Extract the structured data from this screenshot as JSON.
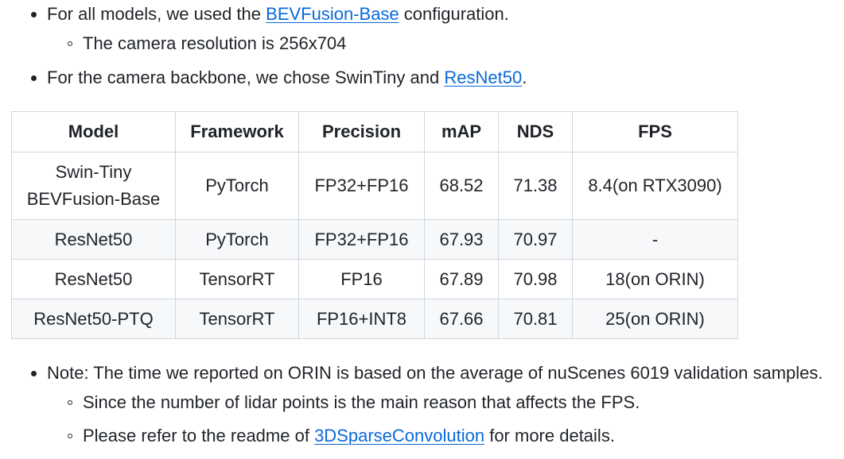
{
  "intro": {
    "item1": {
      "before": "For all models, we used the ",
      "link": "BEVFusion-Base",
      "after": " configuration."
    },
    "item1_sub": "The camera resolution is 256x704",
    "item2": {
      "before": "For the camera backbone, we chose SwinTiny and ",
      "link": "ResNet50",
      "after": "."
    }
  },
  "table": {
    "headers": [
      "Model",
      "Framework",
      "Precision",
      "mAP",
      "NDS",
      "FPS"
    ],
    "rows": [
      {
        "model_line1": "Swin-Tiny",
        "model_line2": "BEVFusion-Base",
        "framework": "PyTorch",
        "precision": "FP32+FP16",
        "map": "68.52",
        "nds": "71.38",
        "fps": "8.4(on RTX3090)"
      },
      {
        "model": "ResNet50",
        "framework": "PyTorch",
        "precision": "FP32+FP16",
        "map": "67.93",
        "nds": "70.97",
        "fps": "-"
      },
      {
        "model": "ResNet50",
        "framework": "TensorRT",
        "precision": "FP16",
        "map": "67.89",
        "nds": "70.98",
        "fps": "18(on ORIN)"
      },
      {
        "model": "ResNet50-PTQ",
        "framework": "TensorRT",
        "precision": "FP16+INT8",
        "map": "67.66",
        "nds": "70.81",
        "fps": "25(on ORIN)"
      }
    ]
  },
  "notes": {
    "item1": "Note: The time we reported on ORIN is based on the average of nuScenes 6019 validation samples.",
    "item1_sub1": "Since the number of lidar points is the main reason that affects the FPS.",
    "item1_sub2": {
      "before": "Please refer to the readme of ",
      "link": "3DSparseConvolution",
      "after": " for more details."
    }
  }
}
